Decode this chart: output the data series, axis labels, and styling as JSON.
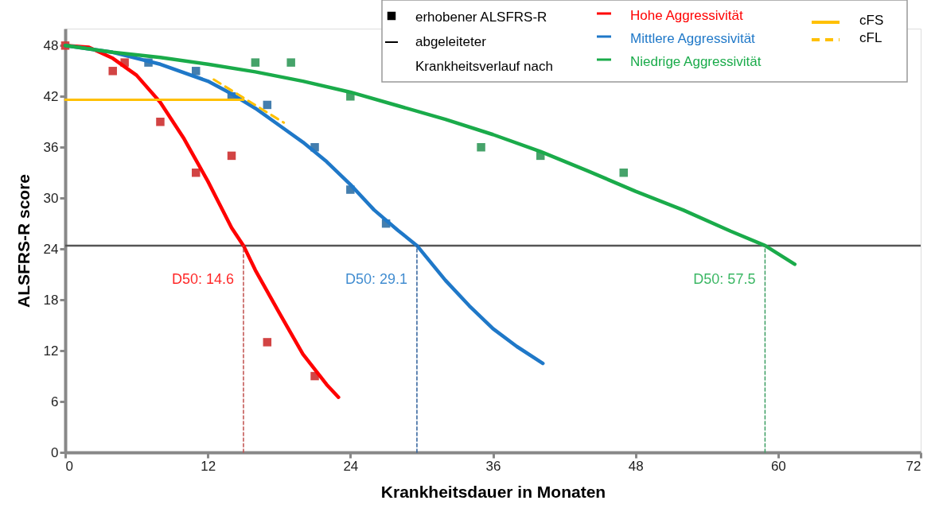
{
  "chart_data": {
    "type": "line",
    "xlabel": "Krankheitsdauer in Monaten",
    "ylabel": "ALSFRS-R score",
    "xlim": [
      0,
      72
    ],
    "xticks": [
      0,
      12,
      24,
      36,
      48,
      60,
      72
    ],
    "ylim": [
      0,
      50
    ],
    "yticks": [
      0,
      6,
      12,
      18,
      24,
      30,
      36,
      42,
      48
    ],
    "grid": false,
    "legend": "top right",
    "series": [
      {
        "type": "scatter",
        "marker": "square",
        "color": "#d03a3a",
        "x": [
          0,
          4,
          5,
          8,
          11,
          14,
          17,
          21
        ],
        "values": [
          48,
          45,
          46,
          39,
          33,
          35,
          13,
          9
        ]
      },
      {
        "type": "scatter",
        "marker": "square",
        "color": "#3a77aa",
        "x": [
          7,
          11,
          14,
          17,
          21,
          24,
          27
        ],
        "values": [
          46,
          45,
          42,
          41,
          36,
          31,
          27
        ]
      },
      {
        "type": "scatter",
        "marker": "square",
        "color": "#3c9e62",
        "x": [
          16,
          19,
          24,
          35,
          40,
          47
        ],
        "values": [
          46,
          46,
          42,
          36,
          35,
          33
        ]
      },
      {
        "name": "Hohe Aggressivität",
        "color": "#ff0000",
        "line_style": "solid",
        "x": [
          0,
          2,
          4,
          6,
          8,
          10,
          12,
          14,
          15,
          16,
          18,
          20,
          22,
          23
        ],
        "values": [
          48,
          47.8,
          46.5,
          44.5,
          41.3,
          37,
          32,
          26.5,
          24.4,
          21.5,
          16.5,
          11.6,
          8,
          6.5
        ]
      },
      {
        "name": "Mittlere Aggressivität",
        "color": "#1f78c8",
        "line_style": "solid",
        "x": [
          0,
          4,
          8,
          12,
          14,
          16,
          18,
          20,
          22,
          24,
          26,
          28,
          29.6,
          32,
          34,
          36,
          38,
          40.2
        ],
        "values": [
          48,
          47.2,
          45.8,
          43.8,
          42.3,
          40.6,
          38.6,
          36.6,
          34.3,
          31.6,
          28.6,
          26.2,
          24.4,
          20.3,
          17.3,
          14.6,
          12.5,
          10.5
        ]
      },
      {
        "name": "Niedrige Aggressivität",
        "color": "#1aab4a",
        "line_style": "solid",
        "x": [
          0,
          4,
          8,
          12,
          16,
          20,
          24,
          28,
          32,
          36,
          40,
          44,
          48,
          52,
          56,
          58.9,
          61.4
        ],
        "values": [
          48,
          47.2,
          46.6,
          45.8,
          44.9,
          43.8,
          42.5,
          40.9,
          39.3,
          37.5,
          35.5,
          33.2,
          30.8,
          28.6,
          26.1,
          24.4,
          22.2
        ]
      },
      {
        "name": "cFS",
        "color": "#ffc000",
        "line_style": "solid",
        "x": [
          0,
          15
        ],
        "values": [
          41.6,
          41.6
        ]
      },
      {
        "name": "cFL",
        "color": "#ffc000",
        "line_style": "dashed",
        "x": [
          12.5,
          18.4
        ],
        "values": [
          44,
          38.9
        ]
      },
      {
        "type": "line",
        "color": "#c0504d",
        "line_style": "dotted",
        "x": [
          15,
          15
        ],
        "values": [
          0,
          24.4
        ]
      },
      {
        "type": "line",
        "color": "#2f5f9a",
        "line_style": "dotted",
        "x": [
          29.6,
          29.6
        ],
        "values": [
          0,
          24.4
        ]
      },
      {
        "type": "line",
        "color": "#3c9e62",
        "line_style": "dotted",
        "x": [
          58.9,
          58.9
        ],
        "values": [
          0,
          24.4
        ]
      }
    ],
    "ref_lines": [
      {
        "axis": "y",
        "value": 24.4,
        "color": "#555555"
      }
    ],
    "annotations": [
      "erhobener ALSFRS-R",
      "abgeleiteter Krankheitsverlauf nach",
      {
        "text": "D50: 14.6",
        "x": 15,
        "y": 24.4
      },
      {
        "text": "D50: 29.1",
        "x": 29.6,
        "y": 24.4
      },
      {
        "text": "D50: 57.5",
        "x": 58.9,
        "y": 24.4
      }
    ]
  }
}
